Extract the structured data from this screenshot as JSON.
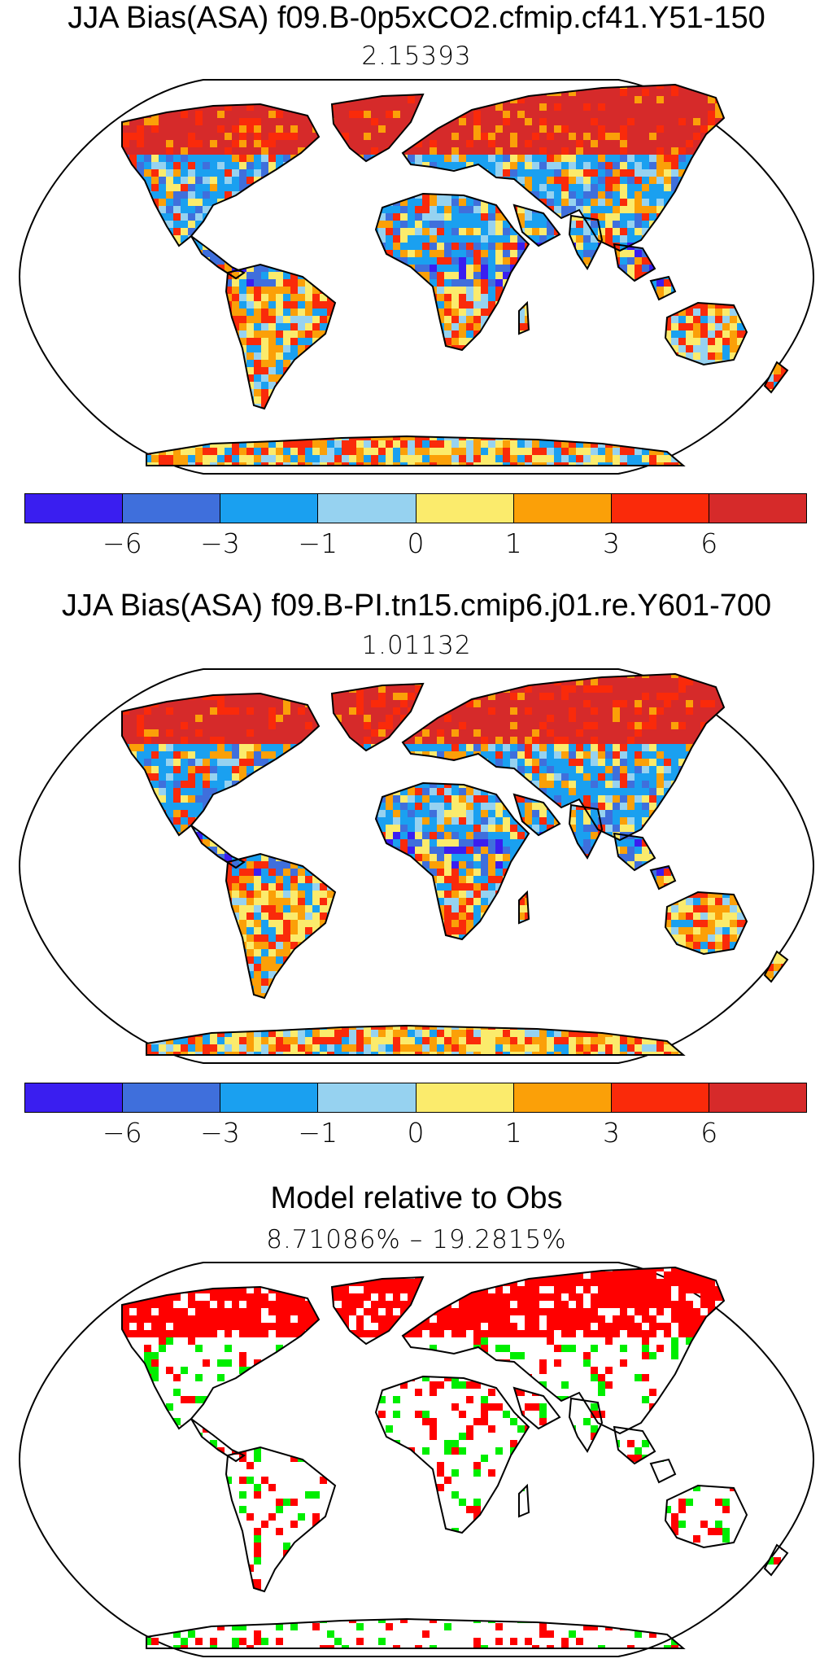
{
  "panels": [
    {
      "title": "JJA Bias(ASA) f09.B-0p5xCO2.cfmip.cf41.Y51-150",
      "subtitle": "2.15393",
      "kind": "bias"
    },
    {
      "title": "JJA Bias(ASA) f09.B-PI.tn15.cmip6.j01.re.Y601-700",
      "subtitle": "1.01132",
      "kind": "bias"
    },
    {
      "title": "Model relative to Obs",
      "subtitle": "8.71086% – 19.2815%",
      "kind": "relative"
    }
  ],
  "colorbar": {
    "colors": [
      "#3a1ef0",
      "#3f6fdc",
      "#1aa0f0",
      "#96d2f0",
      "#fbeb6c",
      "#fba008",
      "#fa2a0a",
      "#d62a2a"
    ],
    "ticks": [
      "−6",
      "−3",
      "−1",
      "0",
      "1",
      "3",
      "6"
    ]
  },
  "relative_colors": {
    "worse": "#ff0000",
    "better": "#00ee00"
  },
  "map": {
    "projection": "Robinson",
    "coastline_color": "#000000"
  }
}
